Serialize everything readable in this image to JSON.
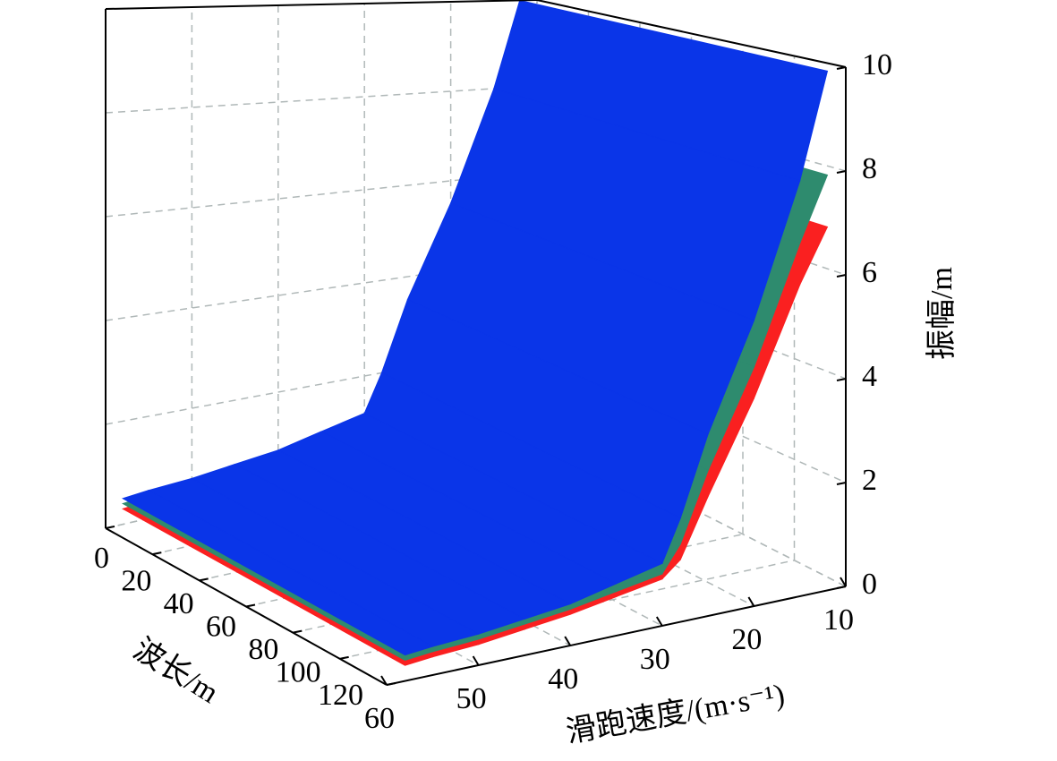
{
  "chart_data": {
    "type": "surface3d",
    "xlabel": "滑跑速度/(m·s⁻¹)",
    "ylabel": "波长/m",
    "zlabel": "振幅/m",
    "xlim": [
      10,
      60
    ],
    "xticks": [
      10,
      20,
      30,
      40,
      50,
      60
    ],
    "ylim": [
      0,
      120
    ],
    "yticks": [
      0,
      20,
      40,
      60,
      80,
      100,
      120
    ],
    "zlim": [
      0,
      10
    ],
    "zticks": [
      0,
      2,
      4,
      6,
      8,
      10
    ],
    "grid": true,
    "x": [
      12,
      15,
      20,
      25,
      28,
      30,
      35,
      40,
      45,
      50,
      55,
      58
    ],
    "series": [
      {
        "color": "#fa2020",
        "values": [
          7,
          6,
          4,
          2.3,
          1.2,
          0.9,
          0.75,
          0.6,
          0.5,
          0.4,
          0.35,
          0.3
        ]
      },
      {
        "color": "#2e8b6e",
        "values": [
          8,
          6.8,
          4.6,
          2.8,
          1.5,
          1.0,
          0.85,
          0.7,
          0.6,
          0.5,
          0.45,
          0.4
        ]
      },
      {
        "color": "#0a35e8",
        "values": [
          10,
          8,
          5.5,
          3.5,
          2.0,
          1.2,
          1.0,
          0.8,
          0.7,
          0.6,
          0.55,
          0.5
        ]
      }
    ]
  }
}
